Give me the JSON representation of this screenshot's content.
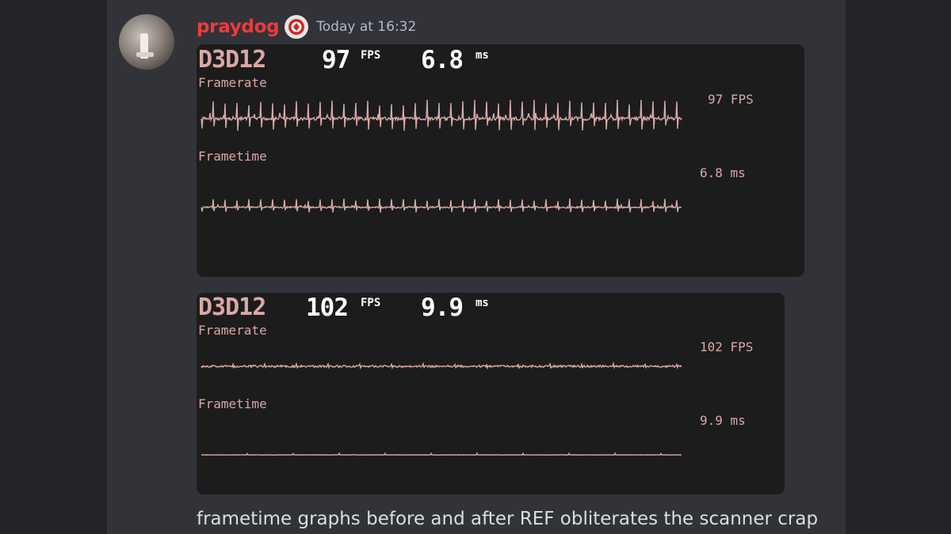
{
  "message": {
    "username": "praydog",
    "timestamp": "Today at 16:32",
    "caption": "frametime graphs before and after REF obliterates the scanner crap",
    "username_color": "#ed3b3b"
  },
  "panels": [
    {
      "api": "D3D12",
      "fps_value": "97",
      "fps_unit": "FPS",
      "ms_value": "6.8",
      "ms_unit": "ms",
      "framerate_label": "Framerate",
      "framerate_readout": "97 FPS",
      "frametime_label": "Frametime",
      "frametime_readout": "6.8 ms"
    },
    {
      "api": "D3D12",
      "fps_value": "102",
      "fps_unit": "FPS",
      "ms_value": "9.9",
      "ms_unit": "ms",
      "framerate_label": "Framerate",
      "framerate_readout": "102 FPS",
      "frametime_label": "Frametime",
      "frametime_readout": "9.9 ms"
    }
  ],
  "graph_color": "#d7a9a4"
}
